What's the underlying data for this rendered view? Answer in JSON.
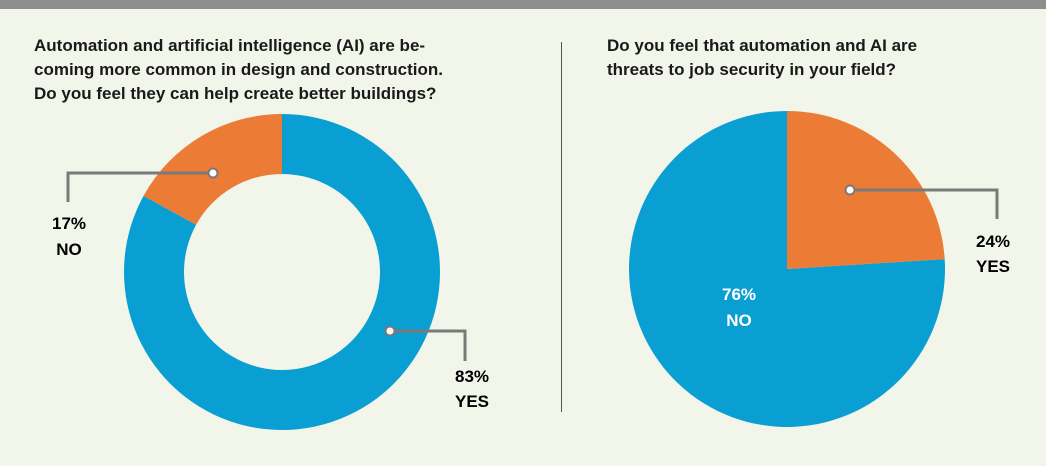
{
  "colors": {
    "yes_blue": "#0a9fd3",
    "no_orange": "#ec7b35",
    "leader_gray": "#7a7a7a",
    "background": "#f1f5ea"
  },
  "chart_data": [
    {
      "type": "pie",
      "variant": "donut",
      "title_lines": [
        "Automation and artificial intelligence (AI) are be-",
        "coming more common in design and construction.",
        "Do you feel they can help create better buildings?"
      ],
      "slices": [
        {
          "label": "YES",
          "value": 83,
          "value_text": "83%",
          "color": "#0a9fd3"
        },
        {
          "label": "NO",
          "value": 17,
          "value_text": "17%",
          "color": "#ec7b35"
        }
      ]
    },
    {
      "type": "pie",
      "variant": "solid",
      "title_lines": [
        "Do you feel that automation and AI are",
        "threats to job security in your field?"
      ],
      "slices": [
        {
          "label": "YES",
          "value": 24,
          "value_text": "24%",
          "color": "#ec7b35"
        },
        {
          "label": "NO",
          "value": 76,
          "value_text": "76%",
          "color": "#0a9fd3"
        }
      ]
    }
  ]
}
